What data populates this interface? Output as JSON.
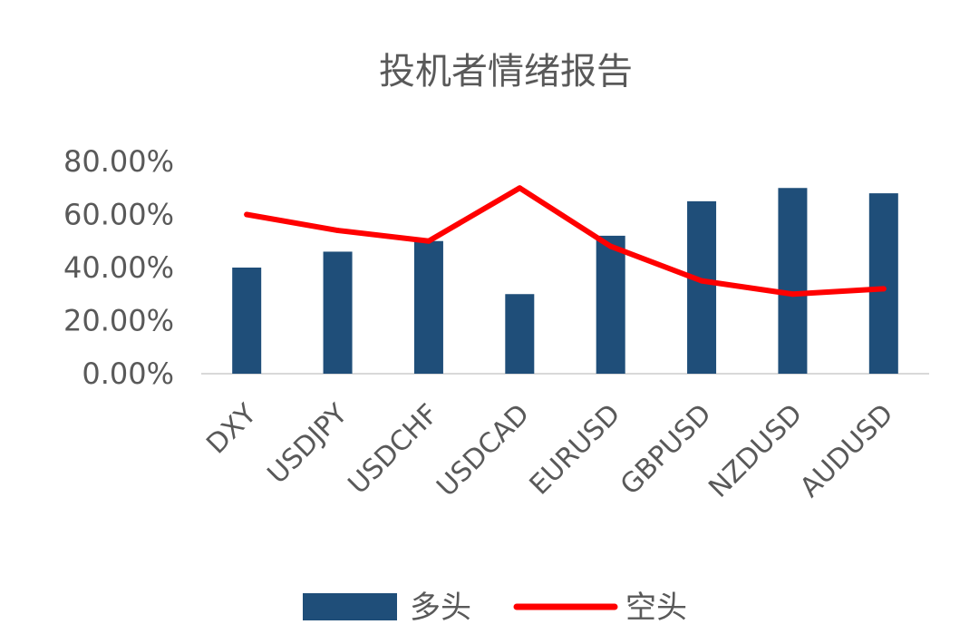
{
  "chart_data": {
    "type": "bar",
    "title": "投机者情绪报告",
    "xlabel": "",
    "ylabel": "",
    "categories": [
      "DXY",
      "USDJPY",
      "USDCHF",
      "USDCAD",
      "EURUSD",
      "GBPUSD",
      "NZDUSD",
      "AUDUSD"
    ],
    "y_ticks": [
      "0.00%",
      "20.00%",
      "40.00%",
      "60.00%",
      "80.00%"
    ],
    "ylim": [
      0,
      80
    ],
    "grid": false,
    "legend_position": "bottom",
    "series": [
      {
        "name": "多头",
        "type": "bar",
        "color": "#1f4e79",
        "values": [
          40,
          46,
          50,
          30,
          52,
          65,
          70,
          68
        ]
      },
      {
        "name": "空头",
        "type": "line",
        "color": "#ff0000",
        "values": [
          60,
          54,
          50,
          70,
          48,
          35,
          30,
          32
        ]
      }
    ]
  }
}
